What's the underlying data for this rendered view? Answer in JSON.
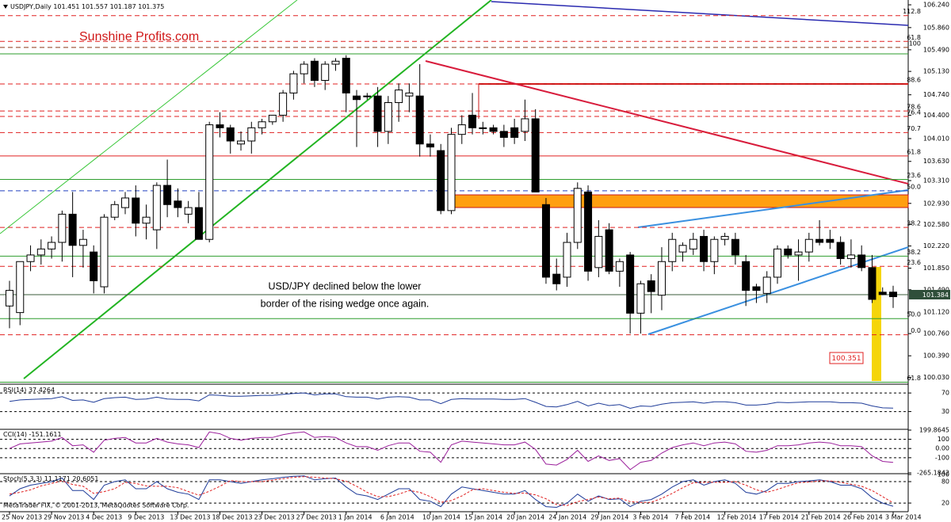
{
  "chart_data": [
    {
      "type": "candlestick",
      "symbol": "USDJPY,Daily",
      "watermark": "Sunshine Profits.com",
      "annotation": [
        "USD/JPY declined below the lower",
        "border of the rising wedge once again."
      ],
      "target_label": "100.351",
      "last_price_label": "101.384",
      "footer": "MetaTrader FIX, © 2001-2013, MetaQuotes Software Corp.",
      "categories": [
        "25 Nov 2013",
        null,
        null,
        null,
        "29 Nov 2013",
        null,
        null,
        null,
        "4 Dec 2013",
        null,
        null,
        null,
        "9 Dec 2013",
        null,
        null,
        null,
        "13 Dec 2013",
        null,
        null,
        null,
        "18 Dec 2013",
        null,
        null,
        null,
        "23 Dec 2013",
        null,
        null,
        null,
        "27 Dec 2013",
        null,
        null,
        null,
        "1 Jan 2014",
        null,
        null,
        null,
        "6 Jan 2014",
        null,
        null,
        null,
        "10 Jan 2014",
        null,
        null,
        null,
        "15 Jan 2014",
        null,
        null,
        null,
        "20 Jan 2014",
        null,
        null,
        null,
        "24 Jan 2014",
        null,
        null,
        null,
        "29 Jan 2014",
        null,
        null,
        null,
        "3 Feb 2014",
        null,
        null,
        null,
        "7 Feb 2014",
        null,
        null,
        null,
        "12 Feb 2014",
        null,
        null,
        null,
        "17 Feb 2014",
        null,
        null,
        null,
        "21 Feb 2014",
        null,
        null,
        null,
        "26 Feb 2014",
        null,
        null,
        null,
        "3 Mar 2014"
      ],
      "open": [
        101.22,
        101.11,
        101.96,
        102.07,
        102.17,
        102.28,
        102.75,
        102.23,
        102.12,
        101.54,
        102.7,
        102.86,
        103.02,
        102.6,
        102.49,
        103.23,
        102.97,
        102.75,
        102.86,
        102.33,
        104.24,
        104.19,
        103.92,
        103.97,
        104.19,
        104.29,
        104.4,
        104.77,
        105.09,
        105.3,
        104.98,
        105.25,
        105.35,
        104.72,
        104.72,
        104.72,
        104.13,
        104.61,
        104.72,
        104.72,
        103.92,
        103.81,
        102.81,
        104.08,
        104.4,
        104.19,
        104.19,
        104.13,
        104.19,
        104.13,
        104.34,
        102.91,
        101.75,
        101.7,
        102.28,
        103.12,
        101.86,
        102.49,
        101.8,
        102.07,
        101.1,
        101.64,
        101.4,
        101.96,
        102.12,
        102.17,
        102.38,
        101.96,
        102.33,
        102.33,
        101.96,
        101.54,
        101.43,
        101.7,
        102.17,
        102.07,
        102.12,
        102.33,
        102.33,
        102.28,
        102.01,
        102.07,
        101.86,
        101.45,
        101.451
      ],
      "high": [
        101.64,
        101.96,
        102.23,
        102.33,
        102.38,
        102.81,
        103.12,
        102.49,
        102.23,
        102.75,
        102.97,
        103.12,
        103.23,
        102.91,
        103.28,
        103.66,
        103.18,
        102.97,
        103.12,
        104.29,
        104.45,
        104.24,
        104.13,
        104.29,
        104.34,
        104.4,
        104.82,
        105.14,
        105.3,
        105.35,
        105.3,
        105.35,
        105.4,
        104.82,
        104.77,
        104.87,
        104.72,
        104.93,
        104.93,
        105.25,
        104.08,
        103.92,
        104.19,
        104.4,
        104.77,
        104.29,
        104.24,
        104.24,
        104.34,
        104.66,
        104.5,
        103.02,
        102.01,
        102.44,
        103.28,
        103.23,
        102.65,
        102.6,
        102.01,
        102.12,
        101.64,
        101.75,
        102.2,
        102.44,
        102.28,
        102.44,
        102.49,
        102.38,
        102.44,
        102.44,
        102.07,
        101.59,
        101.8,
        102.23,
        102.23,
        102.33,
        102.44,
        102.65,
        102.49,
        102.38,
        102.33,
        102.23,
        102.07,
        101.53,
        101.557
      ],
      "low": [
        100.85,
        100.9,
        101.8,
        101.91,
        102.01,
        101.96,
        101.7,
        101.86,
        101.43,
        101.43,
        102.65,
        102.75,
        102.38,
        102.33,
        102.17,
        102.7,
        102.7,
        102.6,
        102.33,
        102.28,
        104.03,
        103.76,
        103.81,
        103.76,
        104.08,
        104.24,
        104.29,
        104.66,
        104.93,
        104.87,
        104.82,
        105.14,
        104.45,
        103.87,
        104.66,
        103.87,
        103.92,
        104.29,
        104.45,
        103.71,
        103.71,
        102.75,
        102.75,
        103.92,
        104.08,
        104.08,
        104.08,
        103.87,
        103.92,
        103.97,
        103.12,
        101.59,
        101.48,
        101.54,
        102.17,
        101.64,
        101.7,
        101.75,
        101.54,
        100.76,
        100.76,
        101.1,
        101.15,
        101.8,
        101.96,
        102.07,
        101.8,
        101.75,
        102.23,
        101.91,
        101.22,
        101.27,
        101.27,
        101.59,
        102.01,
        101.64,
        101.96,
        102.23,
        102.17,
        101.91,
        101.86,
        101.8,
        101.27,
        101.4,
        101.187
      ],
      "close": [
        101.48,
        101.96,
        102.07,
        102.17,
        102.28,
        102.75,
        102.23,
        102.33,
        101.64,
        102.7,
        102.91,
        103.02,
        102.6,
        102.7,
        103.23,
        102.91,
        102.86,
        102.86,
        102.33,
        104.24,
        104.19,
        103.97,
        103.97,
        104.19,
        104.29,
        104.4,
        104.77,
        105.09,
        105.25,
        104.98,
        105.25,
        105.3,
        104.77,
        104.66,
        104.72,
        104.13,
        104.61,
        104.82,
        104.77,
        103.92,
        103.87,
        102.81,
        104.08,
        104.24,
        104.19,
        104.19,
        104.13,
        104.03,
        104.03,
        104.34,
        103.12,
        101.7,
        101.59,
        102.28,
        103.18,
        101.8,
        102.38,
        101.8,
        101.96,
        101.1,
        101.59,
        101.46,
        101.96,
        102.33,
        102.23,
        102.33,
        101.96,
        102.33,
        102.38,
        102.07,
        101.48,
        101.48,
        101.7,
        102.17,
        102.07,
        102.12,
        102.33,
        102.28,
        102.28,
        102.01,
        102.07,
        101.86,
        101.33,
        101.41,
        101.375
      ],
      "ylim": [
        99.93,
        106.32
      ],
      "yticks": [
        {
          "value": 106.24,
          "label": "106.240"
        },
        {
          "value": 105.86,
          "label": "105.860"
        },
        {
          "value": 105.49,
          "label": "105.490"
        },
        {
          "value": 105.13,
          "label": "105.130"
        },
        {
          "value": 104.74,
          "label": "104.740"
        },
        {
          "value": 104.4,
          "label": "104.400"
        },
        {
          "value": 104.01,
          "label": "104.010"
        },
        {
          "value": 103.63,
          "label": "103.630"
        },
        {
          "value": 103.31,
          "label": "103.310"
        },
        {
          "value": 102.93,
          "label": "102.930"
        },
        {
          "value": 102.58,
          "label": "102.580"
        },
        {
          "value": 102.22,
          "label": "102.220"
        },
        {
          "value": 101.85,
          "label": "101.850"
        },
        {
          "value": 101.49,
          "label": "101.490"
        },
        {
          "value": 101.12,
          "label": "101.120"
        },
        {
          "value": 100.76,
          "label": "100.760"
        },
        {
          "value": 100.39,
          "label": "100.390"
        },
        {
          "value": 100.03,
          "label": "100.030"
        }
      ],
      "levels": [
        {
          "value": 106.06,
          "label": "112.8",
          "color": "#e02020",
          "dash": true
        },
        {
          "value": 105.63,
          "label": "61.8",
          "color": "#e02020",
          "dash": true
        },
        {
          "value": 105.53,
          "label": "100",
          "color": "#8b3a1a",
          "dash": true
        },
        {
          "value": 104.92,
          "label": "88.6",
          "color": "#e02020",
          "dash": true
        },
        {
          "value": 104.47,
          "label": "78.6",
          "color": "#e02020",
          "dash": true
        },
        {
          "value": 104.38,
          "label": "76.4",
          "color": "#e02020",
          "dash": true
        },
        {
          "value": 104.11,
          "label": "70.7",
          "color": "#e02020",
          "dash": true
        },
        {
          "value": 103.72,
          "label": "61.8",
          "color": "#e02020",
          "dash": false
        },
        {
          "value": 103.33,
          "label": "23.6",
          "color": "#2e9e2e",
          "dash": false
        },
        {
          "value": 103.14,
          "label": "50.0",
          "color": "#2040c0",
          "dash": true
        },
        {
          "value": 102.53,
          "label": "38.2",
          "color": "#e02020",
          "dash": true
        },
        {
          "value": 102.05,
          "label": "38.2",
          "color": "#2e9e2e",
          "dash": false
        },
        {
          "value": 101.88,
          "label": "23.6",
          "color": "#e02020",
          "dash": true
        },
        {
          "value": 101.01,
          "label": "50.0",
          "color": "#2e9e2e",
          "dash": false
        },
        {
          "value": 100.74,
          "label": "0.0",
          "color": "#e02020",
          "dash": true
        },
        {
          "value": 99.95,
          "label": "61.8",
          "color": "#2e9e2e",
          "dash": false
        }
      ]
    },
    {
      "type": "line",
      "title": "RSI(14)",
      "ylim": [
        -6.6,
        85.6
      ],
      "yticks": [
        70,
        30
      ],
      "grid": true,
      "series": [
        {
          "color": "#1f3c99",
          "dash": false,
          "values": [
            52,
            55,
            56,
            57,
            58,
            62,
            54,
            55,
            50,
            58,
            60,
            61,
            56,
            57,
            61,
            57,
            56,
            56,
            53,
            66,
            65,
            63,
            63,
            64,
            65,
            65,
            67,
            69,
            70,
            66,
            68,
            68,
            62,
            61,
            61,
            57,
            61,
            62,
            61,
            55,
            55,
            47,
            56,
            58,
            57,
            57,
            57,
            56,
            56,
            58,
            50,
            41,
            40,
            45,
            52,
            42,
            48,
            43,
            45,
            37,
            42,
            41,
            46,
            49,
            50,
            51,
            48,
            51,
            51,
            49,
            44,
            44,
            46,
            50,
            49,
            50,
            51,
            51,
            51,
            49,
            49,
            48,
            42,
            38,
            37.4264
          ]
        }
      ]
    },
    {
      "type": "line",
      "title": "CCI(14)",
      "ylim": [
        -265.1842,
        199.8645
      ],
      "yticks": [
        199.8645,
        100,
        {
          "value": 0,
          "label": "0.00"
        },
        -100,
        -265.1842
      ],
      "grid": true,
      "series": [
        {
          "color": "#9b1f9b",
          "dash": false,
          "values": [
            0,
            50,
            60,
            70,
            80,
            120,
            30,
            40,
            -40,
            90,
            110,
            120,
            60,
            60,
            110,
            70,
            50,
            40,
            10,
            180,
            160,
            110,
            90,
            110,
            120,
            120,
            150,
            170,
            180,
            120,
            130,
            120,
            60,
            20,
            20,
            -20,
            30,
            60,
            60,
            -30,
            -40,
            -150,
            40,
            80,
            70,
            60,
            50,
            40,
            40,
            70,
            -10,
            -170,
            -180,
            -120,
            -20,
            -140,
            -80,
            -130,
            -110,
            -230,
            -150,
            -130,
            -50,
            10,
            40,
            60,
            30,
            60,
            70,
            50,
            -30,
            -40,
            -20,
            30,
            30,
            40,
            60,
            70,
            60,
            30,
            30,
            20,
            -80,
            -140,
            -151.1611
          ]
        }
      ]
    },
    {
      "type": "line",
      "title": "Stoch(5,3,3)",
      "ylim": [
        -2,
        100
      ],
      "yticks": [
        100,
        80,
        20
      ],
      "grid": true,
      "series": [
        {
          "color": "#1f3c99",
          "dash": false,
          "values": [
            40,
            60,
            70,
            75,
            80,
            90,
            55,
            55,
            30,
            70,
            80,
            85,
            60,
            60,
            80,
            60,
            50,
            45,
            30,
            85,
            85,
            80,
            75,
            80,
            85,
            88,
            92,
            95,
            96,
            85,
            88,
            90,
            65,
            45,
            40,
            30,
            45,
            60,
            60,
            30,
            25,
            10,
            45,
            65,
            60,
            55,
            50,
            45,
            45,
            55,
            30,
            10,
            8,
            20,
            45,
            25,
            40,
            30,
            32,
            10,
            25,
            30,
            45,
            65,
            80,
            85,
            70,
            80,
            85,
            75,
            50,
            45,
            55,
            75,
            75,
            80,
            82,
            85,
            80,
            70,
            70,
            60,
            35,
            20,
            11.1171
          ]
        },
        {
          "color": "#e02020",
          "dash": true,
          "values": [
            45,
            50,
            57,
            68,
            75,
            82,
            72,
            67,
            47,
            52,
            60,
            78,
            75,
            68,
            67,
            67,
            63,
            52,
            42,
            53,
            67,
            83,
            80,
            80,
            80,
            84,
            88,
            92,
            94,
            92,
            90,
            88,
            81,
            67,
            50,
            38,
            38,
            45,
            55,
            50,
            38,
            22,
            27,
            40,
            57,
            60,
            55,
            50,
            47,
            48,
            43,
            32,
            16,
            13,
            24,
            30,
            37,
            32,
            34,
            24,
            22,
            22,
            33,
            47,
            63,
            77,
            78,
            78,
            78,
            80,
            70,
            57,
            50,
            58,
            68,
            77,
            79,
            82,
            82,
            78,
            73,
            67,
            55,
            38,
            20.6051
          ]
        }
      ]
    }
  ]
}
